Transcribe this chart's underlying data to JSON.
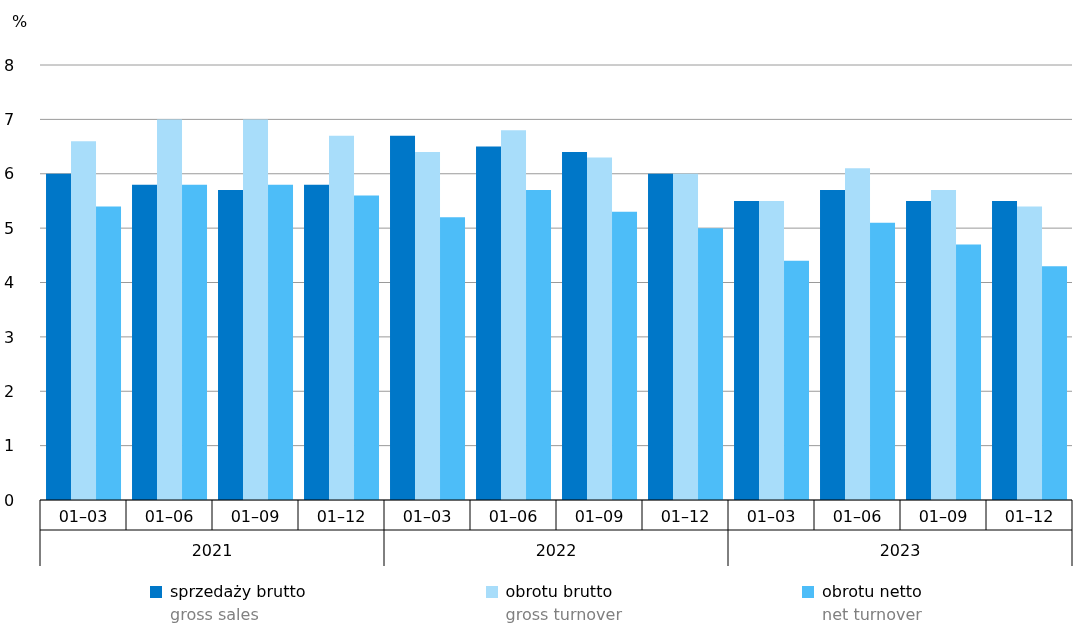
{
  "chart_data": {
    "type": "bar",
    "ylabel": "%",
    "categories": [
      "01–03",
      "01–06",
      "01–09",
      "01–12",
      "01–03",
      "01–06",
      "01–09",
      "01–12",
      "01–03",
      "01–06",
      "01–09",
      "01–12"
    ],
    "annotations": [
      "2021",
      "2022",
      "2023"
    ],
    "series": [
      {
        "name": "sprzedaży brutto\ngross sales",
        "color": "#0077c8",
        "values": [
          6.0,
          5.8,
          5.7,
          5.8,
          6.7,
          6.5,
          6.4,
          6.0,
          5.5,
          5.7,
          5.5,
          5.5
        ]
      },
      {
        "name": "obrotu brutto\ngross turnover",
        "color": "#a8ddfa",
        "values": [
          6.6,
          7.0,
          7.0,
          6.7,
          6.4,
          6.8,
          6.3,
          6.0,
          5.5,
          6.1,
          5.7,
          5.4
        ]
      },
      {
        "name": "obrotu netto\nnet turnover",
        "color": "#4dbdf8",
        "values": [
          5.4,
          5.8,
          5.8,
          5.6,
          5.2,
          5.7,
          5.3,
          5.0,
          4.4,
          5.1,
          4.7,
          4.3
        ]
      }
    ],
    "ylim": [
      0,
      8
    ],
    "yticks": [
      0,
      1,
      2,
      3,
      4,
      5,
      6,
      7,
      8
    ],
    "grid": "y",
    "legend": "bottom"
  }
}
